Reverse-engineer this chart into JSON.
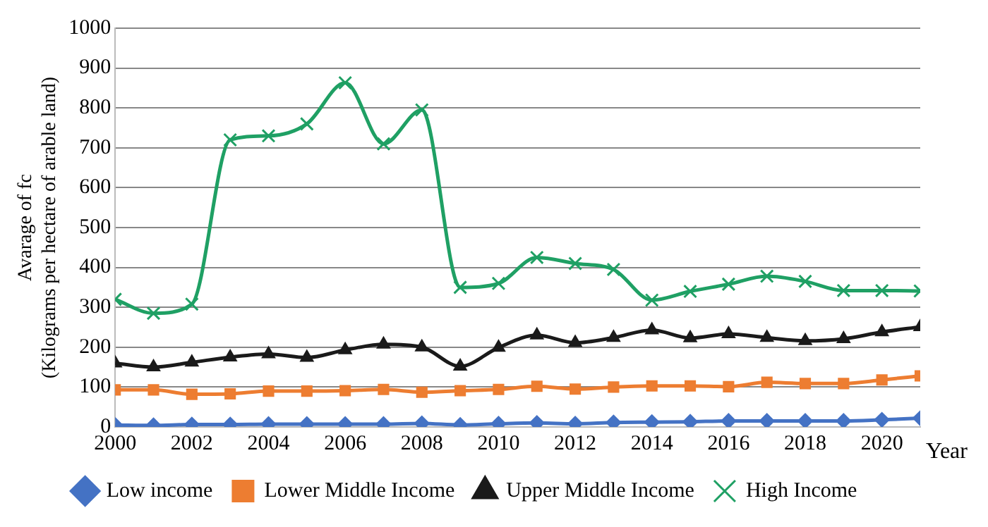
{
  "chart_data": {
    "type": "line",
    "xlabel": "Year",
    "ylabel": "Avarage of fc\n(Kilograms per hectare of arable land)",
    "x": [
      2000,
      2001,
      2002,
      2003,
      2004,
      2005,
      2006,
      2007,
      2008,
      2009,
      2010,
      2011,
      2012,
      2013,
      2014,
      2015,
      2016,
      2017,
      2018,
      2019,
      2020,
      2021
    ],
    "series": [
      {
        "name": "Low income",
        "color": "#4472c4",
        "marker": "diamond",
        "values": [
          5,
          4,
          6,
          6,
          7,
          7,
          7,
          7,
          9,
          5,
          8,
          10,
          8,
          11,
          12,
          13,
          15,
          15,
          15,
          15,
          18,
          22
        ]
      },
      {
        "name": "Lower Middle Income",
        "color": "#ed7d31",
        "marker": "square",
        "values": [
          93,
          93,
          82,
          83,
          90,
          90,
          91,
          94,
          87,
          91,
          94,
          102,
          95,
          100,
          103,
          103,
          101,
          112,
          109,
          109,
          118,
          128
        ]
      },
      {
        "name": "Upper Middle Income",
        "color": "#1a1a1a",
        "marker": "triangle",
        "values": [
          160,
          150,
          162,
          175,
          183,
          174,
          193,
          207,
          200,
          152,
          199,
          230,
          211,
          224,
          243,
          223,
          233,
          224,
          216,
          221,
          238,
          251
        ]
      },
      {
        "name": "High Income",
        "color": "#1fa064",
        "marker": "cross",
        "values": [
          320,
          285,
          308,
          720,
          730,
          760,
          863,
          710,
          795,
          350,
          360,
          425,
          410,
          395,
          318,
          340,
          358,
          378,
          365,
          342,
          342,
          341
        ]
      }
    ],
    "xlim": [
      2000,
      2021
    ],
    "xticks": [
      2000,
      2002,
      2004,
      2006,
      2008,
      2010,
      2012,
      2014,
      2016,
      2018,
      2020
    ],
    "ylim": [
      0,
      1000
    ],
    "yticks": [
      0,
      100,
      200,
      300,
      400,
      500,
      600,
      700,
      800,
      900,
      1000
    ],
    "grid": "y",
    "legend": "bottom"
  }
}
